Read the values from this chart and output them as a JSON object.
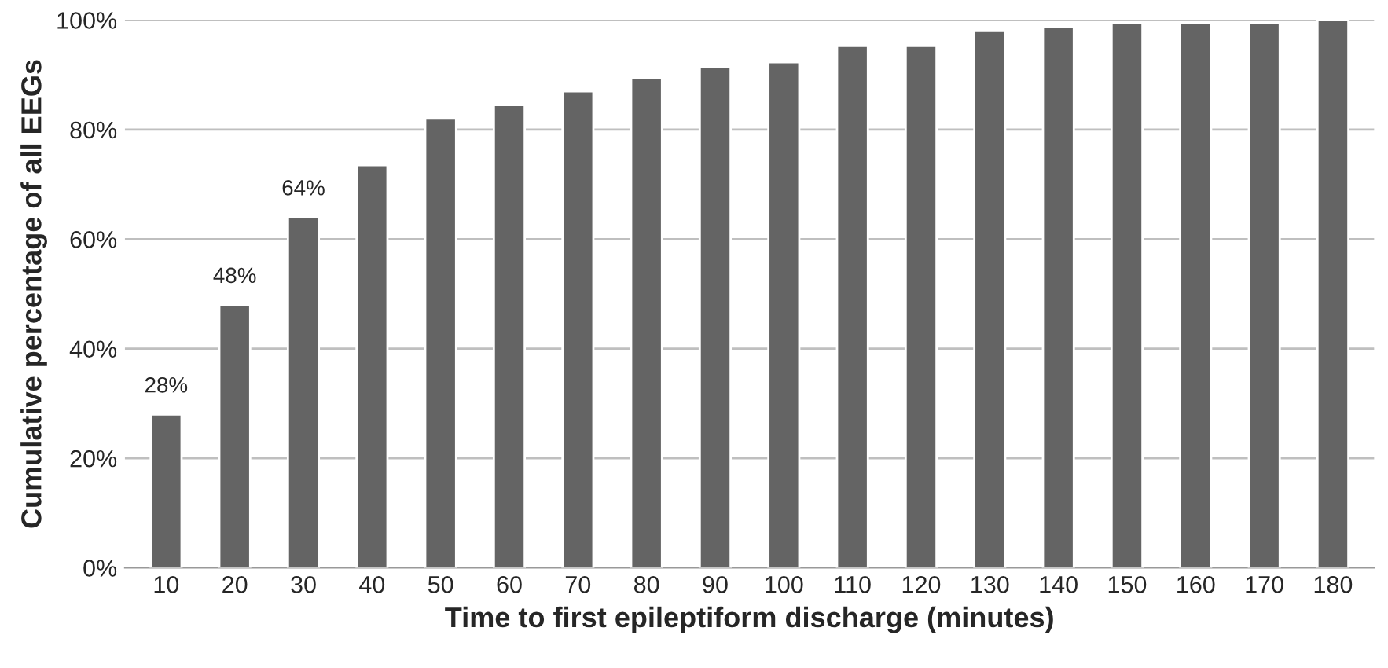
{
  "chart_data": {
    "type": "bar",
    "xlabel": "Time to first epileptiform discharge (minutes)",
    "ylabel": "Cumulative percentage of all EEGs",
    "categories": [
      "10",
      "20",
      "30",
      "40",
      "50",
      "60",
      "70",
      "80",
      "90",
      "100",
      "110",
      "120",
      "130",
      "140",
      "150",
      "160",
      "170",
      "180"
    ],
    "values": [
      28,
      48,
      64,
      73.5,
      82,
      84.5,
      87,
      89.5,
      91.5,
      92.3,
      95.3,
      95.3,
      98,
      98.8,
      99.4,
      99.4,
      99.4,
      100
    ],
    "value_labels": [
      "28%",
      "48%",
      "64%",
      null,
      null,
      null,
      null,
      null,
      null,
      null,
      null,
      null,
      null,
      null,
      null,
      null,
      null,
      null
    ],
    "color": "#646464",
    "ylim": [
      0,
      100
    ],
    "yticks": [
      {
        "value": 0,
        "label": "0%"
      },
      {
        "value": 20,
        "label": "20%"
      },
      {
        "value": 40,
        "label": "40%"
      },
      {
        "value": 60,
        "label": "60%"
      },
      {
        "value": 80,
        "label": "80%"
      },
      {
        "value": 100,
        "label": "100%"
      }
    ],
    "grid": "y",
    "legend": false
  }
}
